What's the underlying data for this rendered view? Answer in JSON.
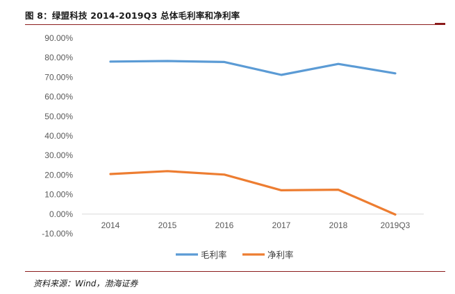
{
  "figure": {
    "title": "图 8：绿盟科技 2014-2019Q3 总体毛利率和净利率",
    "source": "资料来源：Wind，渤海证券"
  },
  "chart_data": {
    "type": "line",
    "categories": [
      "2014",
      "2015",
      "2016",
      "2017",
      "2018",
      "2019Q3"
    ],
    "series": [
      {
        "name": "毛利率",
        "color": "#5b9bd5",
        "values": [
          78.0,
          78.3,
          77.8,
          71.2,
          76.8,
          72.0
        ]
      },
      {
        "name": "净利率",
        "color": "#ed7d31",
        "values": [
          20.5,
          22.0,
          20.2,
          12.2,
          12.5,
          -0.2
        ]
      }
    ],
    "y_ticks": [
      "90.00%",
      "80.00%",
      "70.00%",
      "60.00%",
      "50.00%",
      "40.00%",
      "30.00%",
      "20.00%",
      "10.00%",
      "0.00%",
      "-10.00%"
    ],
    "ylim": [
      -10,
      90
    ],
    "grid": false,
    "legend_position": "bottom"
  }
}
